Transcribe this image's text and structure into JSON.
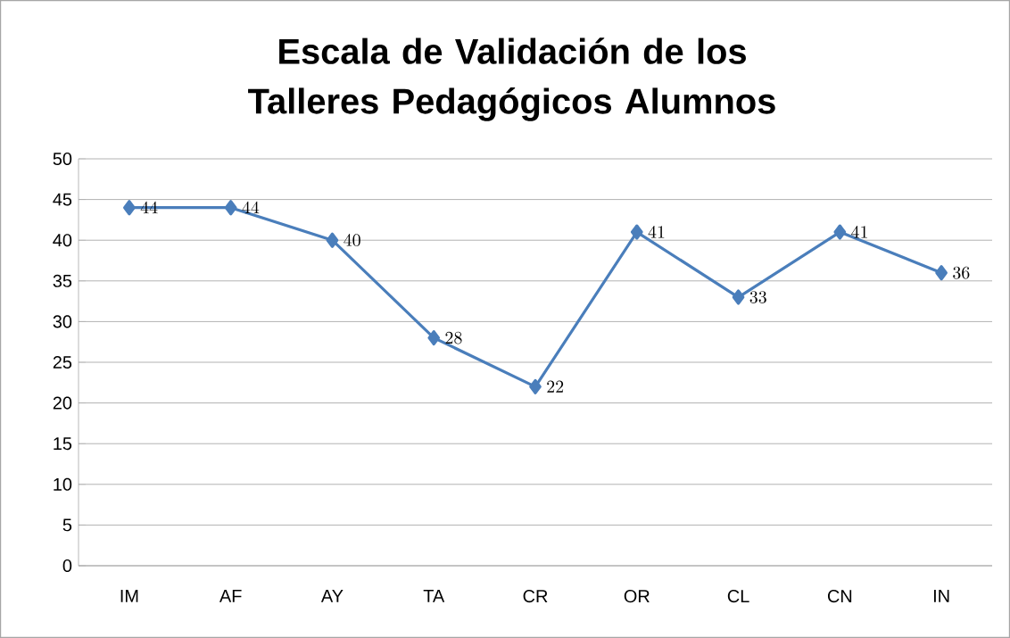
{
  "chart_data": {
    "type": "line",
    "title": "Escala de Validación de los Talleres Pedagógicos Alumnos",
    "categories": [
      "IM",
      "AF",
      "AY",
      "TA",
      "CR",
      "OR",
      "CL",
      "CN",
      "IN"
    ],
    "values": [
      44,
      44,
      40,
      28,
      22,
      41,
      33,
      41,
      36
    ],
    "color": "#4a7ebb",
    "marker": "diamond",
    "line_style": "solid",
    "data_labels": true,
    "ylim": [
      0,
      50
    ],
    "yticks": [
      0,
      5,
      10,
      15,
      20,
      25,
      30,
      35,
      40,
      45,
      50
    ],
    "grid": "y"
  }
}
